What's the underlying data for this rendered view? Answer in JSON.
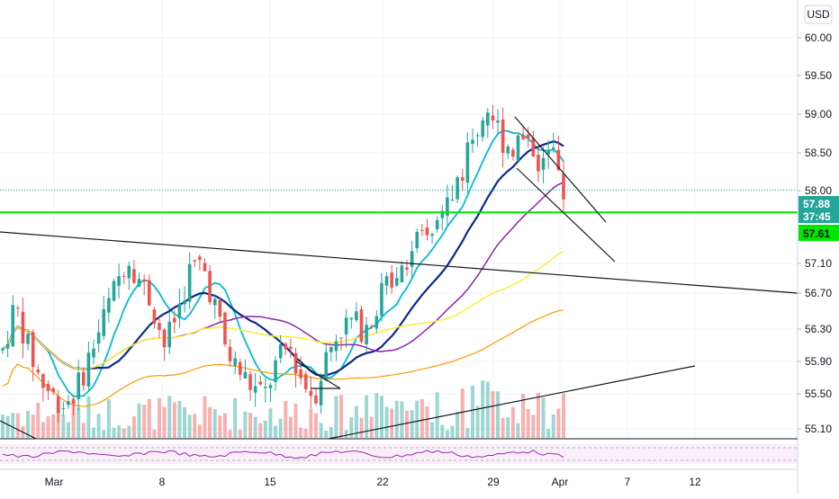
{
  "currency": "USD",
  "chart_data": {
    "type": "candlestick",
    "x_tick_labels": [
      "Mar",
      "8",
      "15",
      "22",
      "29",
      "Apr",
      "7",
      "12"
    ],
    "y_tick_labels": [
      "60.00",
      "59.50",
      "59.00",
      "58.50",
      "58.00",
      "57.10",
      "56.70",
      "56.30",
      "55.90",
      "55.50",
      "55.10"
    ],
    "price_badges": [
      {
        "label": "57.88",
        "sub": "37:45",
        "color": "#26a69a"
      },
      {
        "label": "57.61",
        "color": "#00e600"
      }
    ],
    "colors": {
      "up": "#26a69a",
      "down": "#ef5350",
      "ma_cyan": "#00bcd4",
      "ma_navy": "#0d2a8a",
      "ma_purple": "#8e24aa",
      "ma_yellow": "#ffeb3b",
      "ma_orange": "#ff9800",
      "horizontal_level": "#00e600",
      "rsi": "#9c27b0"
    },
    "ylim": [
      54.95,
      60.25
    ],
    "close_path": [
      55.95,
      56.5,
      56.0,
      55.6,
      55.4,
      55.3,
      55.5,
      55.9,
      56.3,
      56.7,
      57.1,
      56.8,
      56.5,
      56.0,
      56.4,
      56.9,
      57.0,
      56.5,
      55.9,
      55.7,
      55.5,
      55.4,
      55.8,
      56.0,
      55.6,
      55.4,
      55.9,
      56.2,
      56.3,
      56.2,
      56.5,
      56.8,
      57.0,
      57.2,
      57.3,
      57.5,
      57.8,
      58.2,
      58.6,
      58.9,
      58.5,
      58.4,
      58.6,
      58.2,
      58.3,
      57.9
    ]
  }
}
